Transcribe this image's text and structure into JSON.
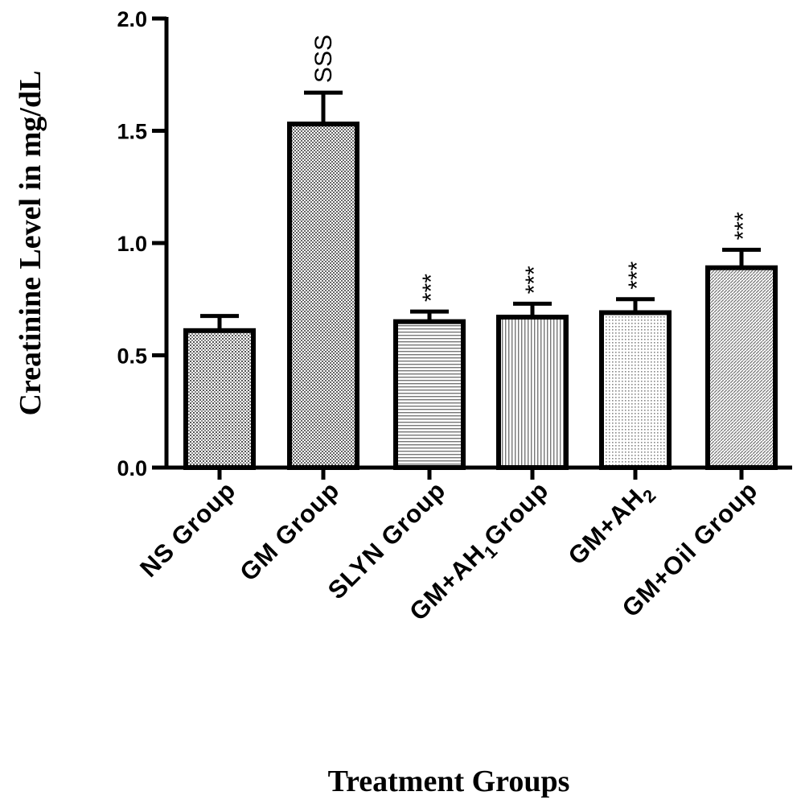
{
  "chart_data": {
    "type": "bar",
    "xlabel": "Treatment Groups",
    "ylabel": "Creatinine Level in mg/dL",
    "ylim": [
      0,
      2.0
    ],
    "yticks": [
      "0.0",
      "0.5",
      "1.0",
      "1.5",
      "2.0"
    ],
    "grid": false,
    "categories": [
      "NS Group",
      "GM Group",
      "SLYN Group",
      "GM+AH1 Group",
      "GM+AH2",
      "GM+Oil Group"
    ],
    "category_labels": [
      {
        "main": "NS Group",
        "sub": ""
      },
      {
        "main": "GM Group",
        "sub": ""
      },
      {
        "main": "SLYN Group",
        "sub": ""
      },
      {
        "main": "GM+AH",
        "sub": "1",
        "rest": "Group"
      },
      {
        "main": "GM+AH",
        "sub": "2",
        "rest": ""
      },
      {
        "main": "GM+Oil Group",
        "sub": ""
      }
    ],
    "values": [
      0.61,
      1.53,
      0.65,
      0.67,
      0.69,
      0.89
    ],
    "errors": [
      0.065,
      0.14,
      0.045,
      0.06,
      0.06,
      0.08
    ],
    "significance": [
      "",
      "SSS",
      "***",
      "***",
      "***",
      "***"
    ],
    "patterns": [
      "dots-dense",
      "checker",
      "hlines",
      "vlines",
      "dots-light",
      "diag"
    ]
  }
}
